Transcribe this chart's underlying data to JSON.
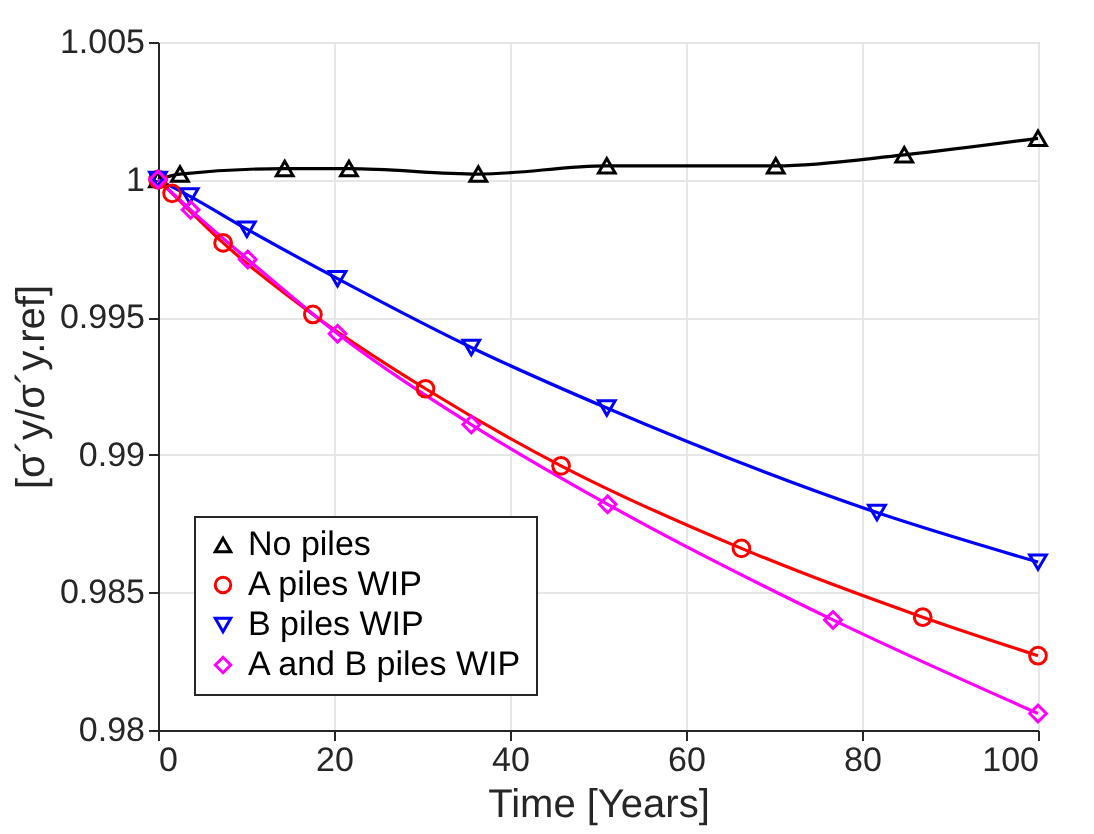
{
  "chart_data": {
    "type": "line",
    "xlabel": "Time [Years]",
    "ylabel": "[σ´y/σ´y.ref]",
    "xlim": [
      0,
      100
    ],
    "xticks": [
      0,
      20,
      40,
      60,
      80,
      100
    ],
    "ylim": [
      0.98,
      1.005
    ],
    "yticks": [
      0.98,
      0.985,
      0.99,
      0.995,
      1,
      1.005
    ],
    "grid": true,
    "legend": "bottom left",
    "line_style": "solid",
    "series": [
      {
        "name": "No piles",
        "color": "#000000",
        "marker": "triangle",
        "x": [
          0,
          2.5,
          14.4,
          21.7,
          36.4,
          51,
          70.2,
          84.8,
          100
        ],
        "values": [
          1.0,
          1.0002,
          1.0004,
          1.0004,
          1.0002,
          1.0005,
          1.0005,
          1.0009,
          1.0015
        ]
      },
      {
        "name": "A piles WIP",
        "color": "#ff0000",
        "marker": "circle",
        "x": [
          0,
          1.6,
          7.4,
          17.6,
          30.4,
          45.8,
          66.3,
          86.9,
          100
        ],
        "values": [
          1.0,
          0.9995,
          0.9977,
          0.9951,
          0.9924,
          0.9896,
          0.9866,
          0.9841,
          0.9827
        ]
      },
      {
        "name": "B piles WIP",
        "color": "#0000ff",
        "marker": "triangle-down",
        "x": [
          0,
          3.6,
          10.1,
          20.4,
          35.6,
          51,
          81.7,
          100
        ],
        "values": [
          1.0,
          0.9994,
          0.9982,
          0.9964,
          0.9939,
          0.9917,
          0.9879,
          0.9861
        ]
      },
      {
        "name": "A and B piles WIP",
        "color": "#ff00ff",
        "marker": "diamond",
        "x": [
          0,
          3.7,
          10.2,
          20.4,
          35.6,
          51.1,
          76.7,
          100
        ],
        "values": [
          1.0,
          0.9989,
          0.9971,
          0.9944,
          0.9911,
          0.9882,
          0.984,
          0.9806
        ]
      }
    ]
  }
}
